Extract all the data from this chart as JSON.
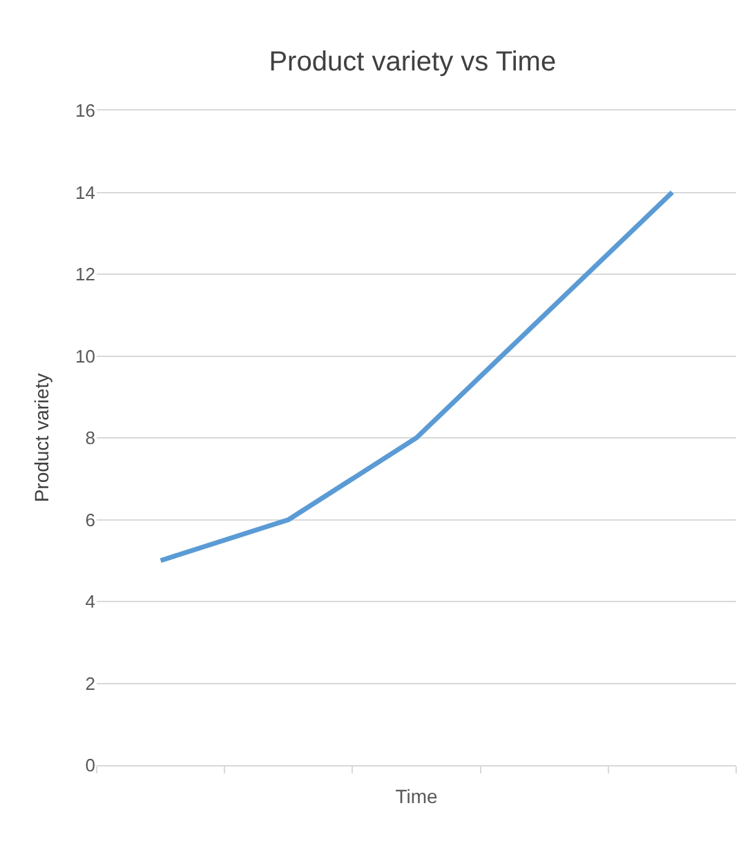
{
  "chart_data": {
    "type": "line",
    "title": "Product variety vs Time",
    "xlabel": "Time",
    "ylabel": "Product variety",
    "categories": [
      null,
      null,
      null,
      null,
      null
    ],
    "series": [
      {
        "color": "#5b9bd5",
        "values": [
          5,
          6,
          8,
          11,
          14
        ]
      }
    ],
    "ylim": [
      0,
      16
    ],
    "yticks": [
      0,
      2,
      4,
      6,
      8,
      10,
      12,
      14,
      16
    ],
    "grid": "y",
    "marker": "none",
    "line_style": "solid"
  }
}
